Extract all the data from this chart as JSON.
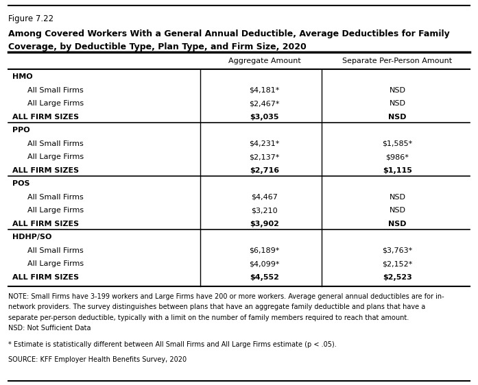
{
  "figure_label": "Figure 7.22",
  "title_line1": "Among Covered Workers With a General Annual Deductible, Average Deductibles for Family",
  "title_line2": "Coverage, by Deductible Type, Plan Type, and Firm Size, 2020",
  "col_headers": [
    "",
    "Aggregate Amount",
    "Separate Per-Person Amount"
  ],
  "rows": [
    {
      "label": "HMO",
      "bold": true,
      "indent": false,
      "agg": "",
      "sep": "",
      "section_header": true
    },
    {
      "label": "All Small Firms",
      "bold": false,
      "indent": true,
      "agg": "$4,181*",
      "sep": "NSD"
    },
    {
      "label": "All Large Firms",
      "bold": false,
      "indent": true,
      "agg": "$2,467*",
      "sep": "NSD"
    },
    {
      "label": "ALL FIRM SIZES",
      "bold": true,
      "indent": false,
      "agg": "$3,035",
      "sep": "NSD"
    },
    {
      "label": "PPO",
      "bold": true,
      "indent": false,
      "agg": "",
      "sep": "",
      "section_header": true
    },
    {
      "label": "All Small Firms",
      "bold": false,
      "indent": true,
      "agg": "$4,231*",
      "sep": "$1,585*"
    },
    {
      "label": "All Large Firms",
      "bold": false,
      "indent": true,
      "agg": "$2,137*",
      "sep": "$986*"
    },
    {
      "label": "ALL FIRM SIZES",
      "bold": true,
      "indent": false,
      "agg": "$2,716",
      "sep": "$1,115"
    },
    {
      "label": "POS",
      "bold": true,
      "indent": false,
      "agg": "",
      "sep": "",
      "section_header": true
    },
    {
      "label": "All Small Firms",
      "bold": false,
      "indent": true,
      "agg": "$4,467",
      "sep": "NSD"
    },
    {
      "label": "All Large Firms",
      "bold": false,
      "indent": true,
      "agg": "$3,210",
      "sep": "NSD"
    },
    {
      "label": "ALL FIRM SIZES",
      "bold": true,
      "indent": false,
      "agg": "$3,902",
      "sep": "NSD"
    },
    {
      "label": "HDHP/SO",
      "bold": true,
      "indent": false,
      "agg": "",
      "sep": "",
      "section_header": true
    },
    {
      "label": "All Small Firms",
      "bold": false,
      "indent": true,
      "agg": "$6,189*",
      "sep": "$3,763*"
    },
    {
      "label": "All Large Firms",
      "bold": false,
      "indent": true,
      "agg": "$4,099*",
      "sep": "$2,152*"
    },
    {
      "label": "ALL FIRM SIZES",
      "bold": true,
      "indent": false,
      "agg": "$4,552",
      "sep": "$2,523"
    }
  ],
  "note_text": "NOTE: Small Firms have 3-199 workers and Large Firms have 200 or more workers. Average general annual deductibles are for in-\nnetwork providers. The survey distinguishes between plans that have an aggregate family deductible and plans that have a\nseparate per-person deductible, typically with a limit on the number of family members required to reach that amount.\nNSD: Not Sufficient Data",
  "footnote": "* Estimate is statistically different between All Small Firms and All Large Firms estimate (p < .05).",
  "source": "SOURCE: KFF Employer Health Benefits Survey, 2020",
  "bg_color": "#ffffff",
  "text_color": "#000000",
  "figsize": [
    6.97,
    5.62
  ],
  "dpi": 100
}
